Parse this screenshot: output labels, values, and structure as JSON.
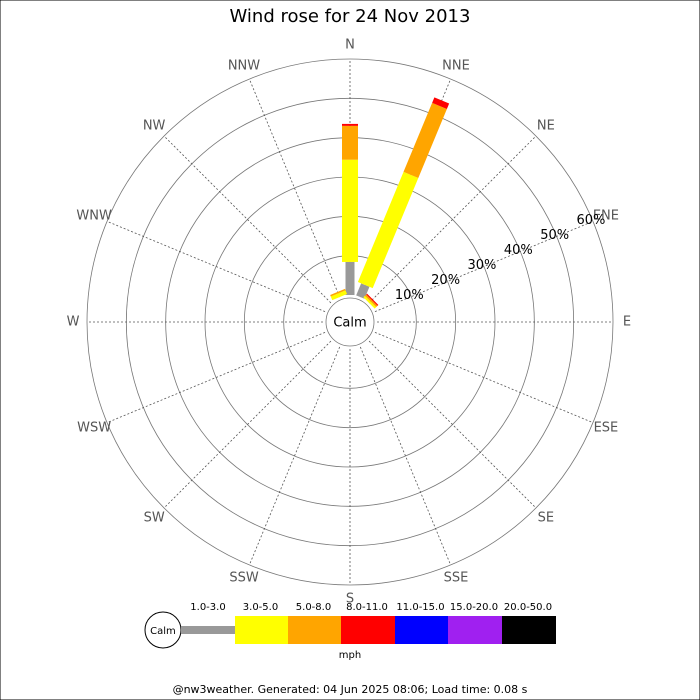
{
  "chart_data": {
    "type": "wind_rose",
    "title": "Wind rose for 24 Nov 2013",
    "categories": [
      "N",
      "NNE",
      "NE",
      "ENE",
      "E",
      "ESE",
      "SE",
      "SSE",
      "S",
      "SSW",
      "SW",
      "WSW",
      "W",
      "WNW",
      "NW",
      "NNW"
    ],
    "series": [
      {
        "name": "1.0-3.0",
        "color": "#999999",
        "values": [
          8.4,
          3.3,
          0,
          0,
          0,
          0,
          0,
          0,
          0,
          0,
          0,
          0,
          0,
          0,
          0,
          0
        ]
      },
      {
        "name": "3.0-5.0",
        "color": "#ffff00",
        "values": [
          26,
          30.3,
          0.5,
          0,
          0,
          0,
          0,
          0,
          0,
          0,
          0,
          0,
          0,
          0,
          0,
          1.0
        ]
      },
      {
        "name": "5.0-8.0",
        "color": "#ffa500",
        "values": [
          8.6,
          19,
          0.5,
          0,
          0,
          0,
          0,
          0,
          0,
          0,
          0,
          0,
          0,
          0,
          0,
          0.4
        ]
      },
      {
        "name": "8.0-11.0",
        "color": "#ff0000",
        "values": [
          0.5,
          1.5,
          0.3,
          0,
          0,
          0,
          0,
          0,
          0,
          0,
          0,
          0,
          0,
          0,
          0,
          0
        ]
      },
      {
        "name": "11.0-15.0",
        "color": "#0000ff",
        "values": [
          0,
          0,
          0,
          0,
          0,
          0,
          0,
          0,
          0,
          0,
          0,
          0,
          0,
          0,
          0,
          0
        ]
      },
      {
        "name": "15.0-20.0",
        "color": "#a020f0",
        "values": [
          0,
          0,
          0,
          0,
          0,
          0,
          0,
          0,
          0,
          0,
          0,
          0,
          0,
          0,
          0,
          0
        ]
      },
      {
        "name": "20.0-50.0",
        "color": "#000000",
        "values": [
          0,
          0,
          0,
          0,
          0,
          0,
          0,
          0,
          0,
          0,
          0,
          0,
          0,
          0,
          0,
          0
        ]
      }
    ],
    "rlim": [
      0,
      60
    ],
    "rticks": [
      {
        "value": 10,
        "label": "10%"
      },
      {
        "value": 20,
        "label": "20%"
      },
      {
        "value": 30,
        "label": "30%"
      },
      {
        "value": 40,
        "label": "40%"
      },
      {
        "value": 50,
        "label": "50%"
      },
      {
        "value": 60,
        "label": "60%"
      }
    ],
    "calm_label": "Calm",
    "unit": "mph",
    "footer": "@nw3weather. Generated: 04 Jun 2025 08:06; Load time: 0.08 s"
  }
}
